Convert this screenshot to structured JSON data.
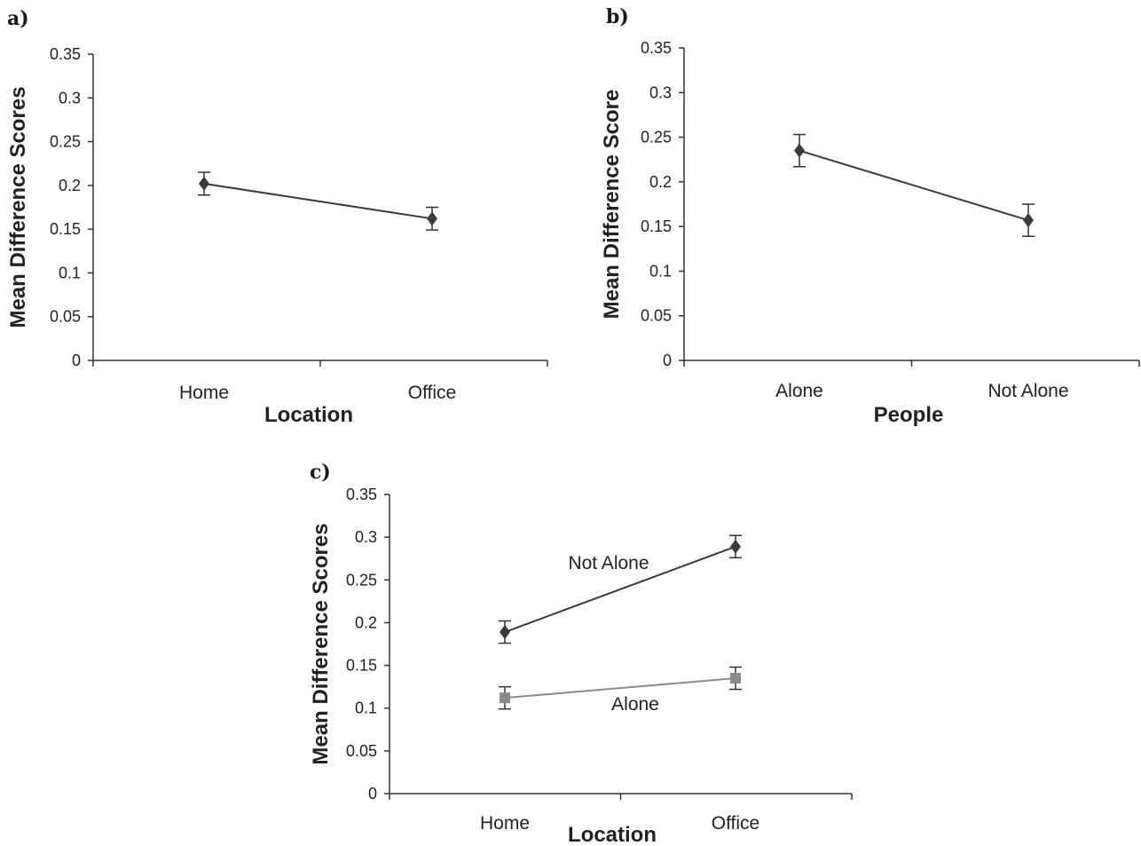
{
  "colors": {
    "dark_series": "#3a3a3a",
    "light_series": "#8a8a8a",
    "axis": "#333333"
  },
  "chart_data": [
    {
      "panel": "a)",
      "type": "line",
      "xlabel": "Location",
      "ylabel": "Mean Difference Scores",
      "categories": [
        "Home",
        "Office"
      ],
      "ylim": [
        0,
        0.35
      ],
      "yticks": [
        "0",
        "0.05",
        "0.1",
        "0.15",
        "0.2",
        "0.25",
        "0.3",
        "0.35"
      ],
      "grid": false,
      "series": [
        {
          "label": "",
          "marker": "diamond",
          "color": "#3a3a3a",
          "values": [
            0.202,
            0.162
          ],
          "error": [
            0.013,
            0.013
          ]
        }
      ]
    },
    {
      "panel": "b)",
      "type": "line",
      "xlabel": "People",
      "ylabel": "Mean Difference Score",
      "categories": [
        "Alone",
        "Not Alone"
      ],
      "ylim": [
        0,
        0.35
      ],
      "yticks": [
        "0",
        "0.05",
        "0.1",
        "0.15",
        "0.2",
        "0.25",
        "0.3",
        "0.35"
      ],
      "grid": false,
      "series": [
        {
          "label": "",
          "marker": "diamond",
          "color": "#3a3a3a",
          "values": [
            0.235,
            0.157
          ],
          "error": [
            0.018,
            0.018
          ]
        }
      ]
    },
    {
      "panel": "c)",
      "type": "line",
      "xlabel": "Location",
      "ylabel": "Mean Difference Scores",
      "categories": [
        "Home",
        "Office"
      ],
      "ylim": [
        0,
        0.35
      ],
      "yticks": [
        "0",
        "0.05",
        "0.1",
        "0.15",
        "0.2",
        "0.25",
        "0.3",
        "0.35"
      ],
      "grid": false,
      "series": [
        {
          "label": "Not Alone",
          "marker": "diamond",
          "color": "#3a3a3a",
          "values": [
            0.189,
            0.289
          ],
          "error": [
            0.013,
            0.013
          ]
        },
        {
          "label": "Alone",
          "marker": "square",
          "color": "#8a8a8a",
          "values": [
            0.112,
            0.135
          ],
          "error": [
            0.013,
            0.013
          ]
        }
      ]
    }
  ]
}
